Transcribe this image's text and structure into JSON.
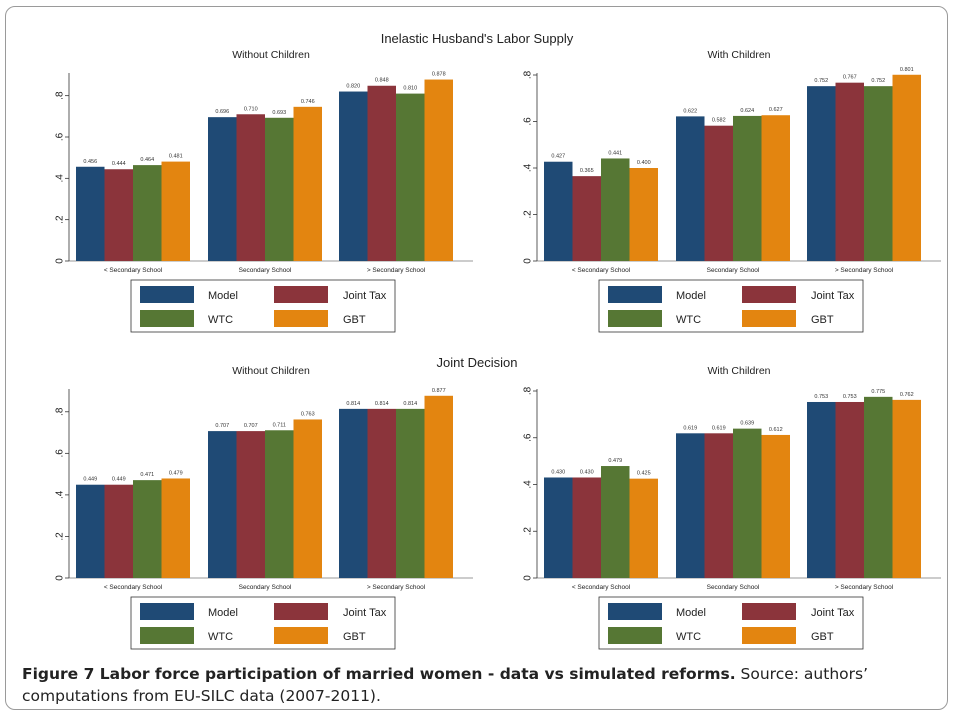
{
  "figure": {
    "section_titles": [
      "Inelastic Husband's Labor Supply",
      "Joint Decision"
    ],
    "caption_bold": "Figure 7 Labor force participation of married women - data vs simulated reforms.",
    "caption_text": " Source: authors’ computations from EU-SILC data (2007-2011)."
  },
  "colors": {
    "Model": "#1f4a75",
    "Joint Tax": "#8b343b",
    "WTC": "#567734",
    "GBT": "#e38510"
  },
  "legend": [
    "Model",
    "Joint Tax",
    "WTC",
    "GBT"
  ],
  "chart_data": [
    {
      "type": "bar",
      "section": "Inelastic Husband's Labor Supply",
      "title": "Without Children",
      "categories": [
        "< Secondary School",
        "Secondary School",
        "> Secondary School"
      ],
      "yticks": [
        "0",
        ".2",
        ".4",
        ".6",
        ".8"
      ],
      "ylim": [
        0,
        0.9
      ],
      "series": [
        {
          "name": "Model",
          "values": [
            0.456,
            0.696,
            0.82
          ],
          "labels": [
            "0.456",
            "0.696",
            "0.820"
          ]
        },
        {
          "name": "Joint Tax",
          "values": [
            0.444,
            0.71,
            0.848
          ],
          "labels": [
            "0.444",
            "0.710",
            "0.848"
          ]
        },
        {
          "name": "WTC",
          "values": [
            0.464,
            0.693,
            0.81
          ],
          "labels": [
            "0.464",
            "0.693",
            "0.810"
          ]
        },
        {
          "name": "GBT",
          "values": [
            0.481,
            0.746,
            0.878
          ],
          "labels": [
            "0.481",
            "0.746",
            "0.878"
          ]
        }
      ]
    },
    {
      "type": "bar",
      "section": "Inelastic Husband's Labor Supply",
      "title": "With Children",
      "categories": [
        "< Secondary School",
        "Secondary School",
        "> Secondary School"
      ],
      "yticks": [
        "0",
        ".2",
        ".4",
        ".6",
        ".8"
      ],
      "ylim": [
        0,
        0.8
      ],
      "series": [
        {
          "name": "Model",
          "values": [
            0.427,
            0.622,
            0.752
          ],
          "labels": [
            "0.427",
            "0.622",
            "0.752"
          ]
        },
        {
          "name": "Joint Tax",
          "values": [
            0.365,
            0.582,
            0.767
          ],
          "labels": [
            "0.365",
            "0.582",
            "0.767"
          ]
        },
        {
          "name": "WTC",
          "values": [
            0.441,
            0.624,
            0.752
          ],
          "labels": [
            "0.441",
            "0.624",
            "0.752"
          ]
        },
        {
          "name": "GBT",
          "values": [
            0.4,
            0.627,
            0.801
          ],
          "labels": [
            "0.400",
            "0.627",
            "0.801"
          ]
        }
      ]
    },
    {
      "type": "bar",
      "section": "Joint Decision",
      "title": "Without Children",
      "categories": [
        "< Secondary School",
        "Secondary School",
        "> Secondary School"
      ],
      "yticks": [
        "0",
        ".2",
        ".4",
        ".6",
        ".8"
      ],
      "ylim": [
        0,
        0.9
      ],
      "series": [
        {
          "name": "Model",
          "values": [
            0.449,
            0.707,
            0.814
          ],
          "labels": [
            "0.449",
            "0.707",
            "0.814"
          ]
        },
        {
          "name": "Joint Tax",
          "values": [
            0.449,
            0.707,
            0.814
          ],
          "labels": [
            "0.449",
            "0.707",
            "0.814"
          ]
        },
        {
          "name": "WTC",
          "values": [
            0.471,
            0.711,
            0.814
          ],
          "labels": [
            "0.471",
            "0.711",
            "0.814"
          ]
        },
        {
          "name": "GBT",
          "values": [
            0.479,
            0.763,
            0.877
          ],
          "labels": [
            "0.479",
            "0.763",
            "0.877"
          ]
        }
      ]
    },
    {
      "type": "bar",
      "section": "Joint Decision",
      "title": "With Children",
      "categories": [
        "< Secondary School",
        "Secondary School",
        "> Secondary School"
      ],
      "yticks": [
        "0",
        ".2",
        ".4",
        ".6",
        ".8"
      ],
      "ylim": [
        0,
        0.8
      ],
      "series": [
        {
          "name": "Model",
          "values": [
            0.43,
            0.619,
            0.753
          ],
          "labels": [
            "0.430",
            "0.619",
            "0.753"
          ]
        },
        {
          "name": "Joint Tax",
          "values": [
            0.43,
            0.619,
            0.753
          ],
          "labels": [
            "0.430",
            "0.619",
            "0.753"
          ]
        },
        {
          "name": "WTC",
          "values": [
            0.479,
            0.639,
            0.775
          ],
          "labels": [
            "0.479",
            "0.639",
            "0.775"
          ]
        },
        {
          "name": "GBT",
          "values": [
            0.425,
            0.612,
            0.762
          ],
          "labels": [
            "0.425",
            "0.612",
            "0.762"
          ]
        }
      ]
    }
  ]
}
